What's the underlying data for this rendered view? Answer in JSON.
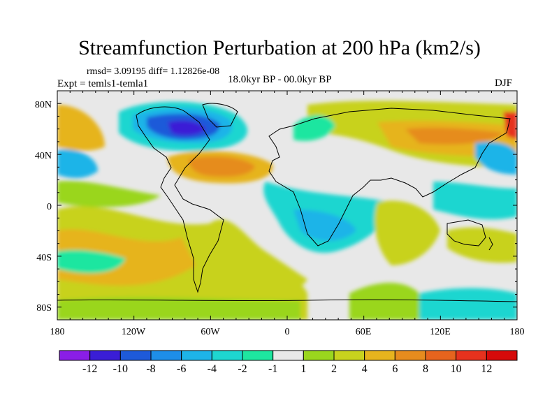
{
  "title": "Streamfunction Perturbation at 200 hPa (km2/s)",
  "stats": {
    "rmsd_label": "rmsd= 3.09195 diff= 1.12826e-08"
  },
  "experiment": "Expt = temls1-temla1",
  "period": "18.0kyr BP - 00.0kyr BP",
  "season": "DJF",
  "lat_labels": [
    "80N",
    "40N",
    "0",
    "40S",
    "80S"
  ],
  "lon_labels": [
    "180",
    "120W",
    "60W",
    "0",
    "60E",
    "120E",
    "180"
  ],
  "colorbar": {
    "labels": [
      "-12",
      "-10",
      "-8",
      "-6",
      "-4",
      "-2",
      "-1",
      "1",
      "2",
      "4",
      "6",
      "8",
      "10",
      "12"
    ],
    "colors": [
      "#8a1ee6",
      "#3a1ed6",
      "#1e5ad9",
      "#1e8ee8",
      "#1eb4e8",
      "#1ed6d0",
      "#1ee6a0",
      "#e8e8e8",
      "#9ad61e",
      "#c8d21e",
      "#e6b41e",
      "#e68c1e",
      "#e6641e",
      "#e6321e",
      "#d60a0a"
    ]
  }
}
